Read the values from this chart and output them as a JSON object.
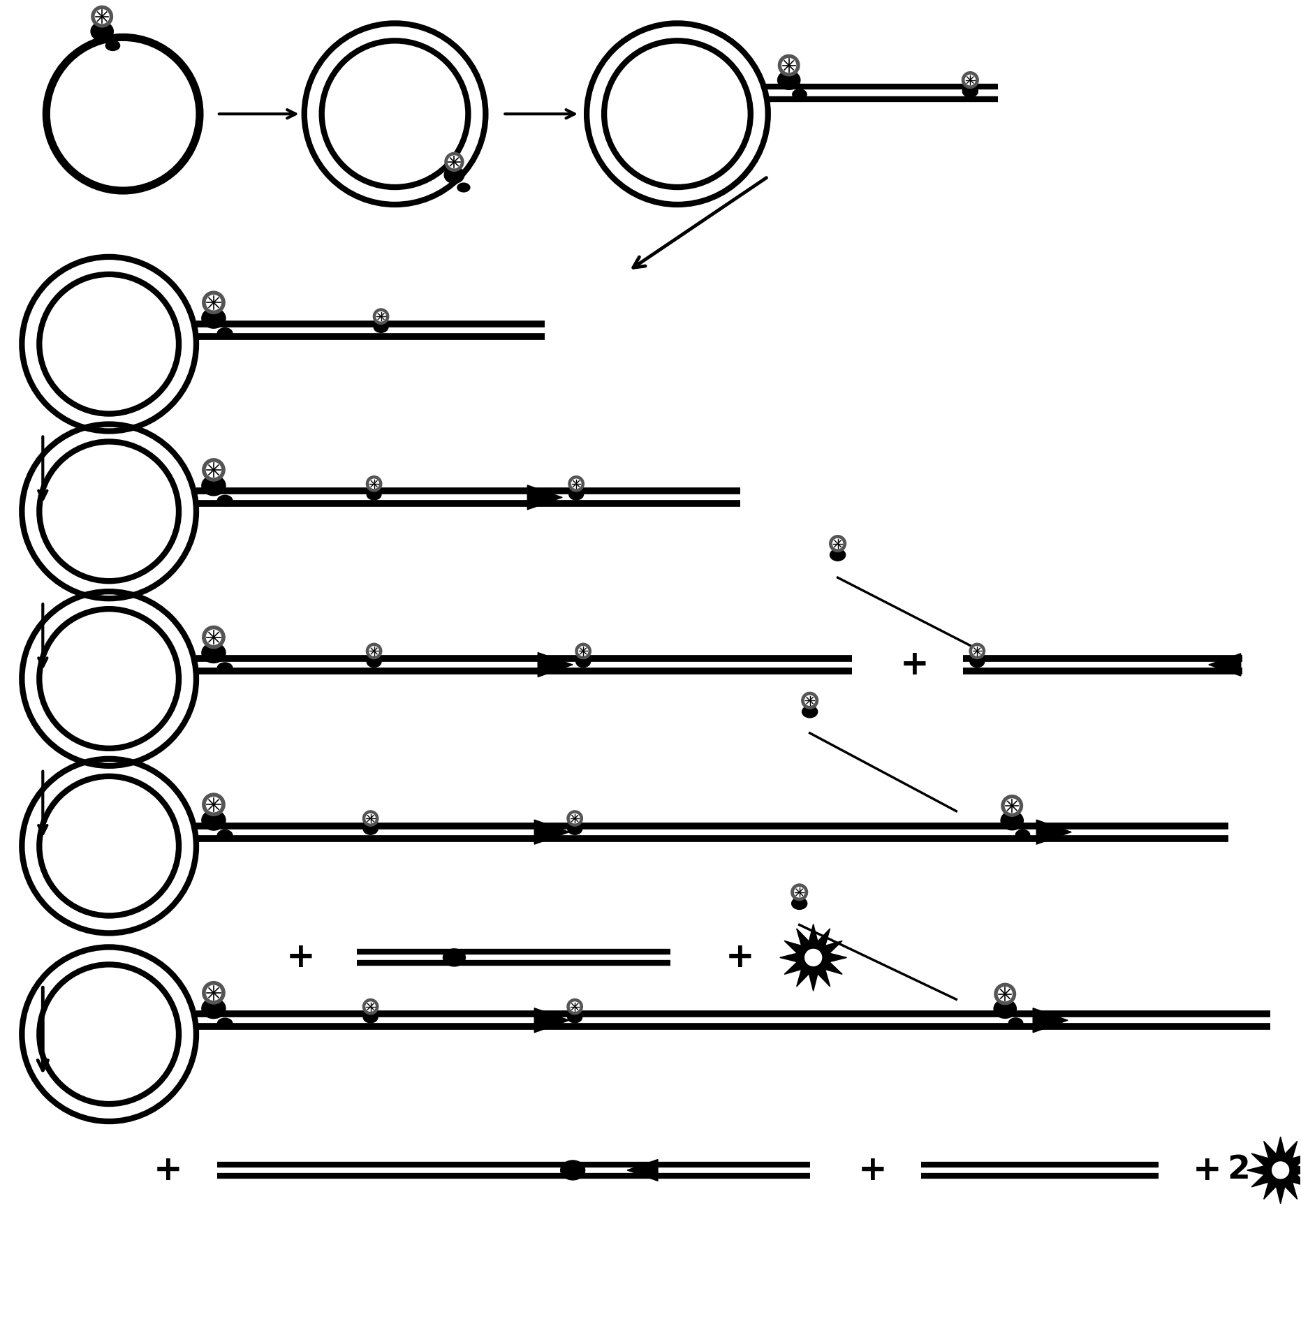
{
  "bg_color": "#ffffff",
  "line_color": "#000000",
  "figsize": [
    18.63,
    19.22
  ],
  "dpi": 100,
  "lw_circle": 5,
  "lw_line": 5,
  "lw_arrow": 2.5
}
